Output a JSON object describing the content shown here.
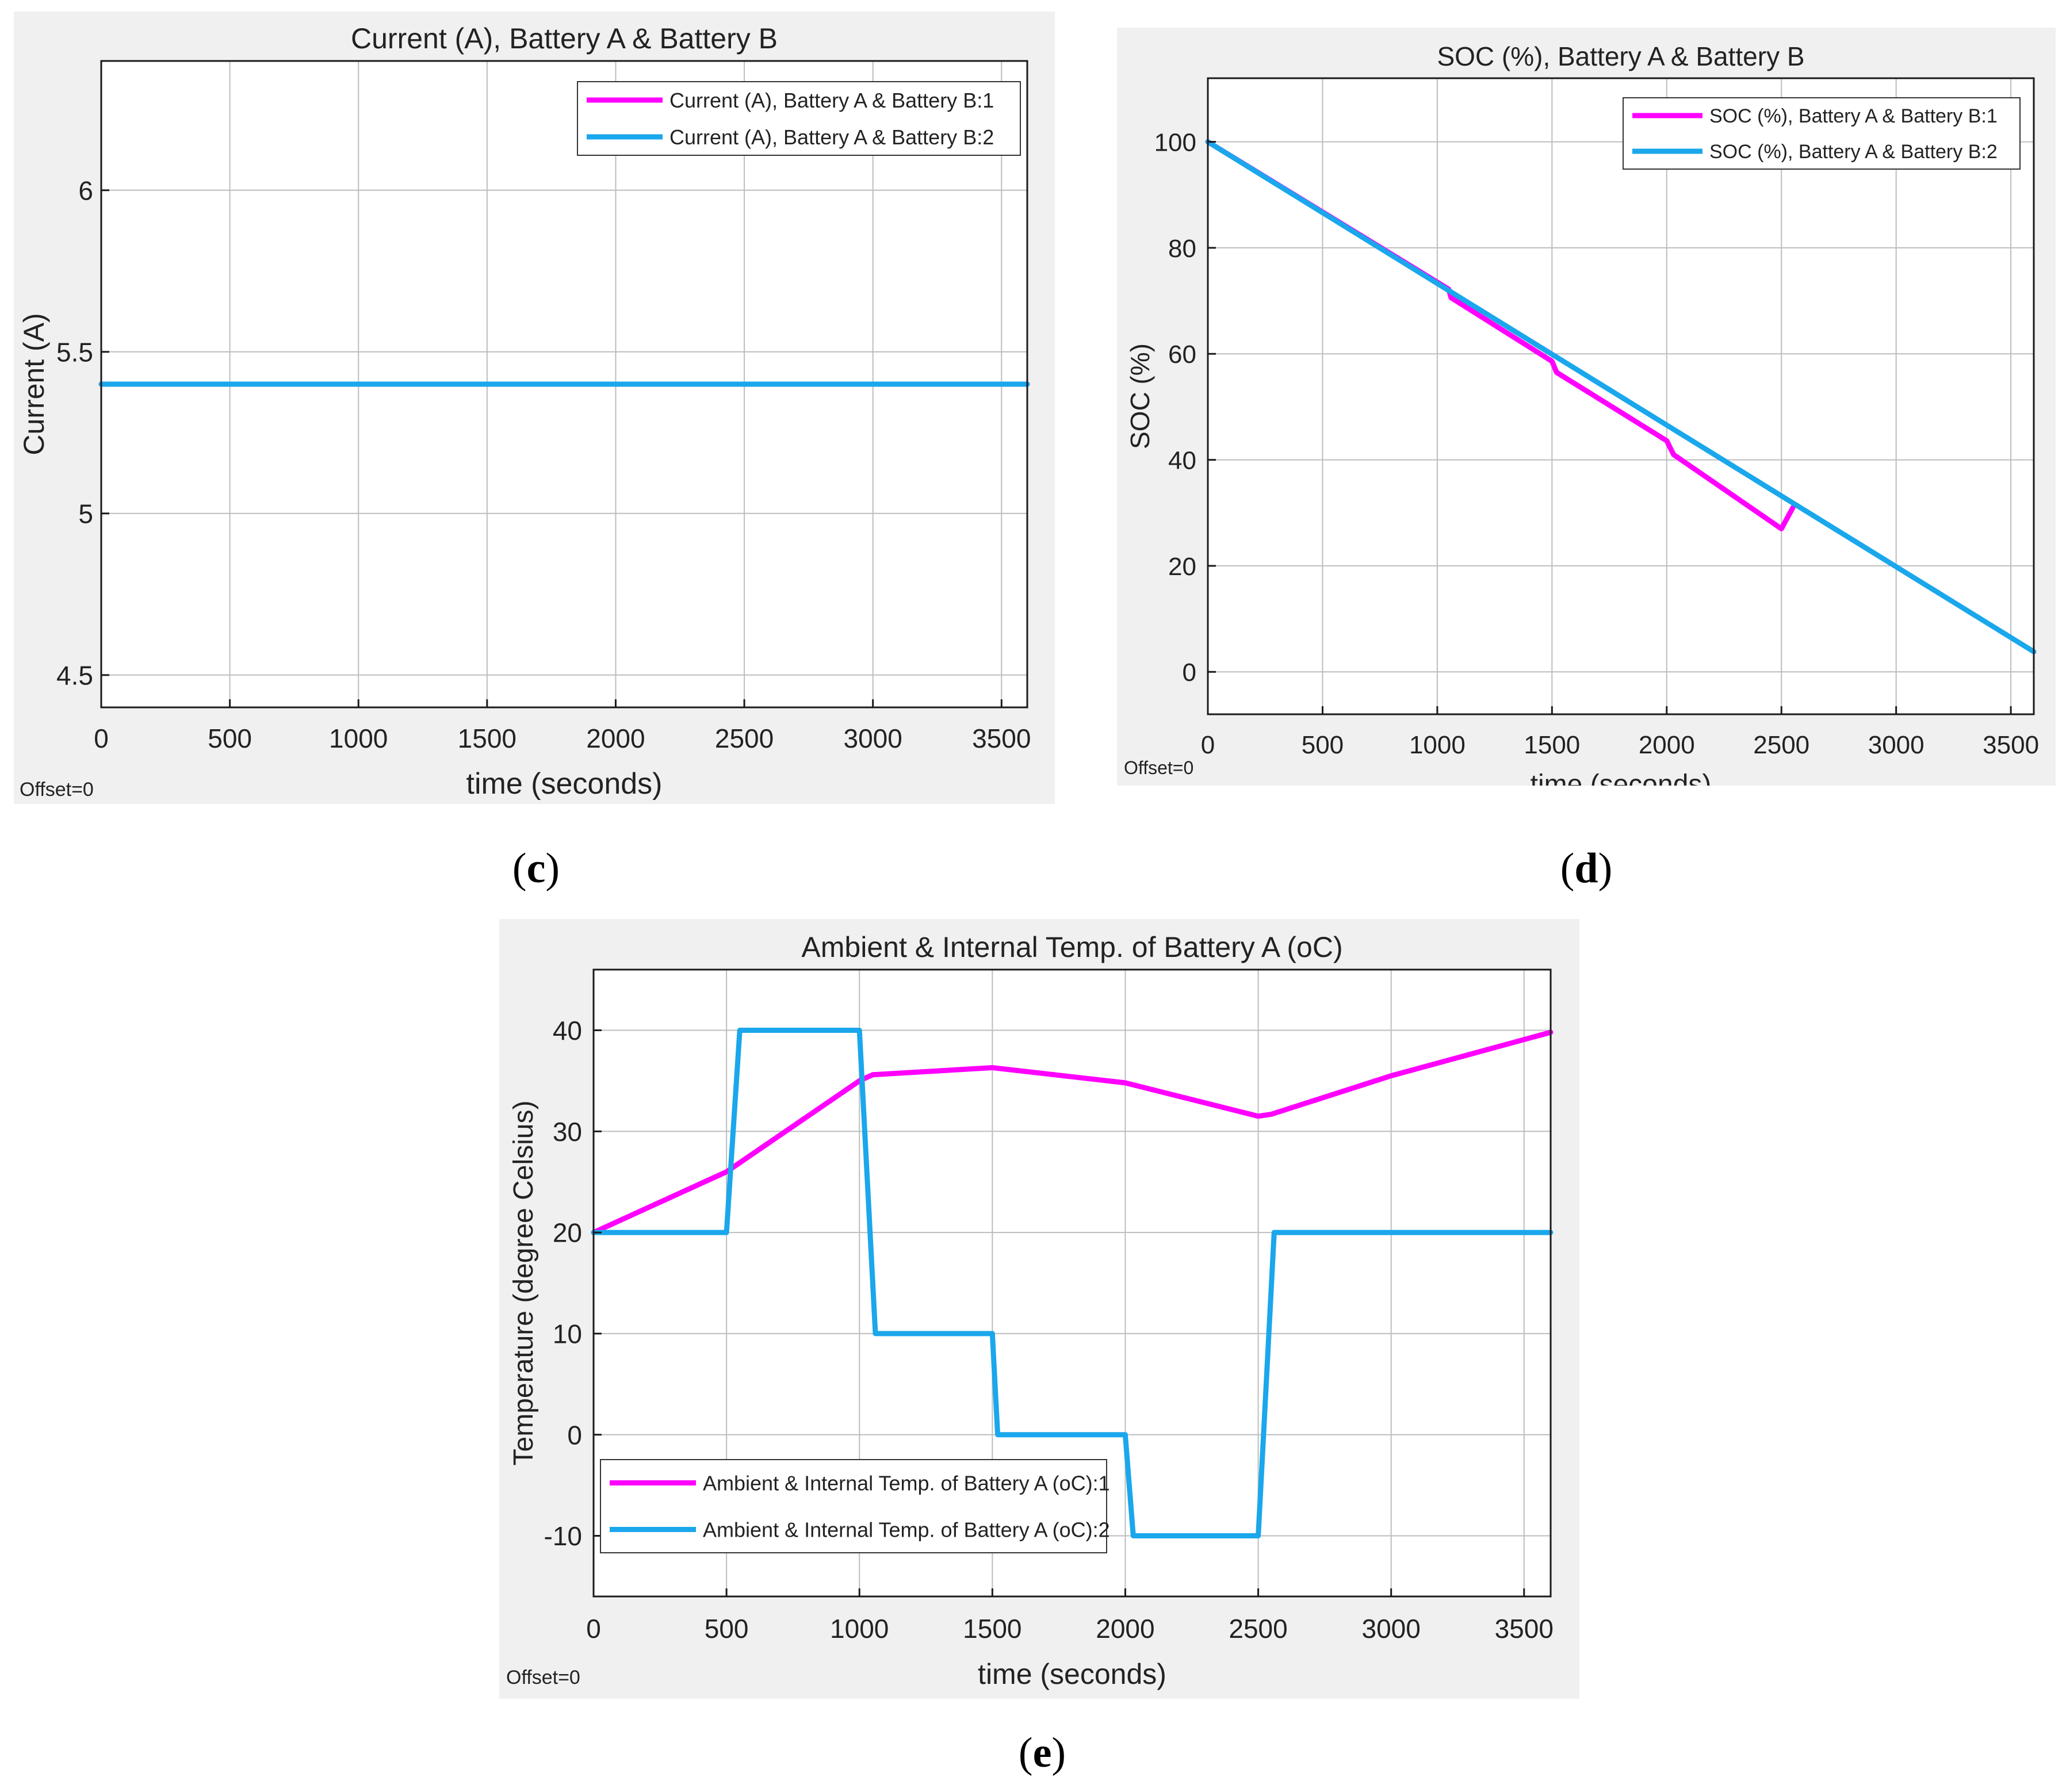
{
  "colors": {
    "series1": "#ff00ff",
    "series2": "#1aa7ec",
    "grid": "#bdbdbd",
    "axis": "#1a1a1a",
    "panel_bg": "#f0f0f0",
    "plot_bg": "#ffffff"
  },
  "panels": [
    {
      "label_open": "(",
      "label_letter": "c",
      "label_close": ")"
    },
    {
      "label_open": "(",
      "label_letter": "d",
      "label_close": ")"
    },
    {
      "label_open": "(",
      "label_letter": "e",
      "label_close": ")"
    }
  ],
  "chart_data": [
    {
      "type": "line",
      "title": "Current (A), Battery  A & Battery B",
      "xlabel": "time (seconds)",
      "ylabel": "Current (A)",
      "offset_text": "Offset=0",
      "xlim": [
        0,
        3600
      ],
      "ylim": [
        4.4,
        6.4
      ],
      "xticks": [
        0,
        500,
        1000,
        1500,
        2000,
        2500,
        3000,
        3500
      ],
      "xtick_labels": [
        "0",
        "500",
        "1000",
        "1500",
        "2000",
        "2500",
        "3000",
        "3500"
      ],
      "yticks": [
        4.5,
        5,
        5.5,
        6
      ],
      "ytick_labels": [
        "4.5",
        "5",
        "5.5",
        "6"
      ],
      "grid": true,
      "legend_position": "top-right",
      "series": [
        {
          "name": "Current (A), Battery  A & Battery B:1",
          "color": "#ff00ff",
          "x": [
            0,
            3600
          ],
          "y": [
            5.4,
            5.4
          ]
        },
        {
          "name": "Current (A), Battery  A & Battery B:2",
          "color": "#1aa7ec",
          "x": [
            0,
            3600
          ],
          "y": [
            5.4,
            5.4
          ]
        }
      ]
    },
    {
      "type": "line",
      "title": "SOC (%), Battery  A & Battery  B",
      "xlabel": "time (seconds)",
      "ylabel": "SOC (%)",
      "offset_text": "Offset=0",
      "xlim": [
        0,
        3600
      ],
      "ylim": [
        -8,
        112
      ],
      "xticks": [
        0,
        500,
        1000,
        1500,
        2000,
        2500,
        3000,
        3500
      ],
      "xtick_labels": [
        "0",
        "500",
        "1000",
        "1500",
        "2000",
        "2500",
        "3000",
        "3500"
      ],
      "yticks": [
        0,
        20,
        40,
        60,
        80,
        100
      ],
      "ytick_labels": [
        "0",
        "20",
        "40",
        "60",
        "80",
        "100"
      ],
      "grid": true,
      "legend_position": "top-right",
      "series": [
        {
          "name": "SOC (%), Battery  A & Battery  B:1",
          "color": "#ff00ff",
          "x": [
            0,
            1050,
            1060,
            1500,
            1520,
            2000,
            2030,
            2500,
            2550
          ],
          "y": [
            100,
            72.2,
            70.6,
            58.6,
            56.5,
            43.6,
            41,
            27,
            31
          ]
        },
        {
          "name": "SOC (%), Battery  A & Battery  B:2",
          "color": "#1aa7ec",
          "x": [
            0,
            3600
          ],
          "y": [
            100,
            3.8
          ]
        }
      ]
    },
    {
      "type": "line",
      "title": "Ambient & Internal Temp. of Battery A (oC)",
      "xlabel": "time (seconds)",
      "ylabel": "Temperature (degree Celsius)",
      "offset_text": "Offset=0",
      "xlim": [
        0,
        3600
      ],
      "ylim": [
        -16,
        46
      ],
      "xticks": [
        0,
        500,
        1000,
        1500,
        2000,
        2500,
        3000,
        3500
      ],
      "xtick_labels": [
        "0",
        "500",
        "1000",
        "1500",
        "2000",
        "2500",
        "3000",
        "3500"
      ],
      "yticks": [
        -10,
        0,
        10,
        20,
        30,
        40
      ],
      "ytick_labels": [
        "-10",
        "0",
        "10",
        "20",
        "30",
        "40"
      ],
      "grid": true,
      "legend_position": "bottom-left",
      "series": [
        {
          "name": "Ambient & Internal Temp. of Battery A (oC):1",
          "color": "#ff00ff",
          "x": [
            0,
            500,
            1000,
            1050,
            1500,
            2000,
            2500,
            2550,
            3000,
            3600
          ],
          "y": [
            20,
            26,
            35,
            35.6,
            36.3,
            34.8,
            31.5,
            31.7,
            35.5,
            39.8
          ]
        },
        {
          "name": "Ambient & Internal Temp. of Battery A (oC):2",
          "color": "#1aa7ec",
          "x": [
            0,
            500,
            550,
            1000,
            1060,
            1500,
            1520,
            2000,
            2030,
            2500,
            2560,
            3600
          ],
          "y": [
            20,
            20,
            40,
            40,
            10,
            10,
            0,
            0,
            -10,
            -10,
            20,
            20
          ]
        }
      ]
    }
  ]
}
